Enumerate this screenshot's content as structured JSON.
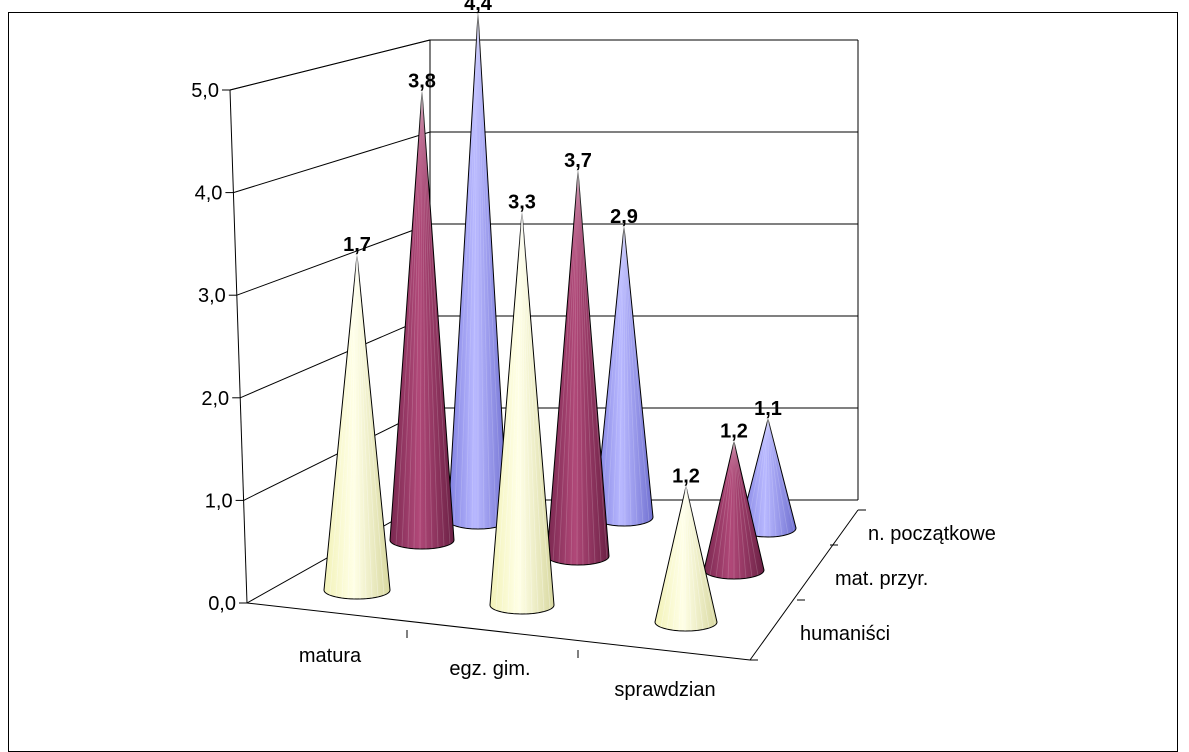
{
  "chart_data": {
    "type": "bar",
    "style": "3d-cone",
    "categories": [
      "matura",
      "egz. gim.",
      "sprawdzian"
    ],
    "series": [
      {
        "name": "humaniści",
        "values": [
          1.7,
          3.3,
          1.2
        ],
        "color": "#FFFFCC"
      },
      {
        "name": "mat. przyr.",
        "values": [
          3.8,
          3.7,
          1.2
        ],
        "color": "#993366"
      },
      {
        "name": "n. początkowe",
        "values": [
          4.4,
          2.9,
          1.1
        ],
        "color": "#9999FF"
      }
    ],
    "data_labels": [
      [
        "1,7",
        "3,3",
        "1,2"
      ],
      [
        "3,8",
        "3,7",
        "1,2"
      ],
      [
        "4,4",
        "2,9",
        "1,1"
      ]
    ],
    "yticks": [
      "0,0",
      "1,0",
      "2,0",
      "3,0",
      "4,0",
      "5,0"
    ],
    "ylim": [
      0,
      5
    ],
    "grid": true,
    "legend": "none"
  }
}
